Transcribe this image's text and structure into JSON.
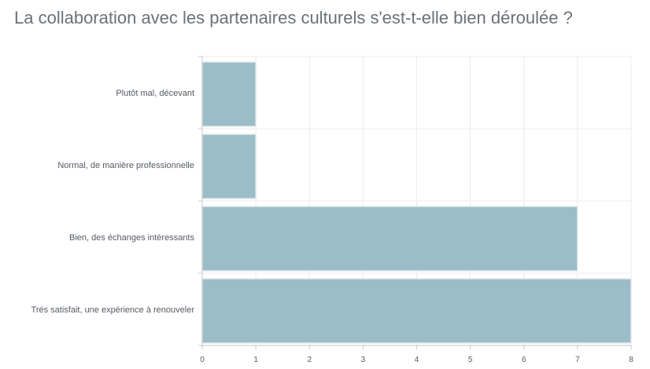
{
  "title": "La collaboration avec les partenaires culturels s'est-t-elle bien déroulée ?",
  "colors": {
    "bar": "#9bbdc8",
    "bar_border": "#e3eaec",
    "grid": "#ececec",
    "axis": "#c9c9c9",
    "text": "#555a60",
    "title": "#6b7178"
  },
  "chart_data": {
    "type": "bar",
    "orientation": "horizontal",
    "title": "La collaboration avec les partenaires culturels s'est-t-elle bien déroulée ?",
    "categories": [
      "Plutôt mal, décevant",
      "Normal, de manière professionnelle",
      "Bien, des échanges intéressants",
      "Trés satisfait, une expérience à renouveler"
    ],
    "values": [
      1,
      1,
      7,
      8
    ],
    "xlim": [
      0,
      8
    ],
    "xticks": [
      0,
      1,
      2,
      3,
      4,
      5,
      6,
      7,
      8
    ],
    "grid": true,
    "legend": "none"
  }
}
